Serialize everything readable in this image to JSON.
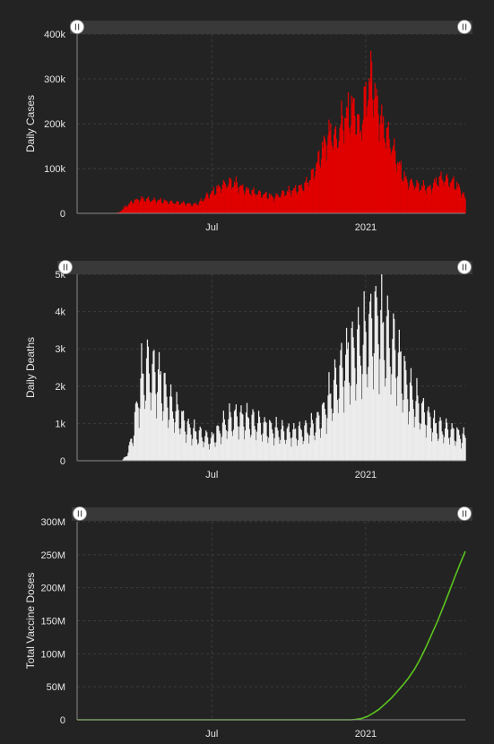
{
  "colors": {
    "background": "#232323",
    "slider_track": "#393939",
    "grid": "#3c3c3c",
    "axis": "#8a8a8a",
    "handle_fill": "#ffffff",
    "handle_mark": "#555555"
  },
  "chart_data": [
    {
      "type": "bar",
      "ylabel": "Daily Cases",
      "ylim": [
        0,
        400000
      ],
      "y_ticks": [
        0,
        100000,
        200000,
        300000,
        400000
      ],
      "y_tick_labels": [
        "0",
        "100k",
        "200k",
        "300k",
        "400k"
      ],
      "x_range": [
        "2020-01-22",
        "2021-04-30"
      ],
      "x_ticks": [
        "2020-07-01",
        "2021-01-01"
      ],
      "x_tick_labels": [
        "Jul",
        "2021"
      ],
      "grid": true,
      "color": "#e00000",
      "series_points": [
        [
          "2020-01-22",
          0
        ],
        [
          "2020-03-01",
          100
        ],
        [
          "2020-03-12",
          2000
        ],
        [
          "2020-03-20",
          15000
        ],
        [
          "2020-03-28",
          26000
        ],
        [
          "2020-04-04",
          30000
        ],
        [
          "2020-04-10",
          32000
        ],
        [
          "2020-04-20",
          29000
        ],
        [
          "2020-05-01",
          28000
        ],
        [
          "2020-05-15",
          24000
        ],
        [
          "2020-05-30",
          22000
        ],
        [
          "2020-06-08",
          19000
        ],
        [
          "2020-06-15",
          22000
        ],
        [
          "2020-06-25",
          38000
        ],
        [
          "2020-07-05",
          50000
        ],
        [
          "2020-07-12",
          60000
        ],
        [
          "2020-07-22",
          68000
        ],
        [
          "2020-07-30",
          65000
        ],
        [
          "2020-08-10",
          52000
        ],
        [
          "2020-08-25",
          44000
        ],
        [
          "2020-09-05",
          40000
        ],
        [
          "2020-09-13",
          35000
        ],
        [
          "2020-09-25",
          45000
        ],
        [
          "2020-10-10",
          53000
        ],
        [
          "2020-10-20",
          62000
        ],
        [
          "2020-10-30",
          88000
        ],
        [
          "2020-11-06",
          120000
        ],
        [
          "2020-11-13",
          155000
        ],
        [
          "2020-11-20",
          180000
        ],
        [
          "2020-11-27",
          160000
        ],
        [
          "2020-12-04",
          205000
        ],
        [
          "2020-12-11",
          220000
        ],
        [
          "2020-12-18",
          235000
        ],
        [
          "2020-12-25",
          180000
        ],
        [
          "2021-01-02",
          270000
        ],
        [
          "2021-01-08",
          300000
        ],
        [
          "2021-01-15",
          235000
        ],
        [
          "2021-01-22",
          190000
        ],
        [
          "2021-01-29",
          165000
        ],
        [
          "2021-02-05",
          130000
        ],
        [
          "2021-02-12",
          95000
        ],
        [
          "2021-02-19",
          70000
        ],
        [
          "2021-02-26",
          66000
        ],
        [
          "2021-03-05",
          60000
        ],
        [
          "2021-03-12",
          58000
        ],
        [
          "2021-03-19",
          55000
        ],
        [
          "2021-03-26",
          70000
        ],
        [
          "2021-04-02",
          78000
        ],
        [
          "2021-04-09",
          72000
        ],
        [
          "2021-04-16",
          68000
        ],
        [
          "2021-04-23",
          55000
        ],
        [
          "2021-04-28",
          40000
        ],
        [
          "2021-04-30",
          30000
        ]
      ]
    },
    {
      "type": "bar",
      "ylabel": "Daily Deaths",
      "ylim": [
        0,
        5000
      ],
      "y_ticks": [
        0,
        1000,
        2000,
        3000,
        4000,
        5000
      ],
      "y_tick_labels": [
        "0",
        "1k",
        "2k",
        "3k",
        "4k",
        "5k"
      ],
      "x_range": [
        "2020-01-22",
        "2021-04-30"
      ],
      "x_ticks": [
        "2020-07-01",
        "2021-01-01"
      ],
      "x_tick_labels": [
        "Jul",
        "2021"
      ],
      "grid": true,
      "color": "#ececec",
      "series_points": [
        [
          "2020-01-22",
          0
        ],
        [
          "2020-03-15",
          0
        ],
        [
          "2020-03-20",
          100
        ],
        [
          "2020-03-28",
          600
        ],
        [
          "2020-04-03",
          1500
        ],
        [
          "2020-04-08",
          2100
        ],
        [
          "2020-04-14",
          2400
        ],
        [
          "2020-04-20",
          2350
        ],
        [
          "2020-04-28",
          2200
        ],
        [
          "2020-05-06",
          1800
        ],
        [
          "2020-05-14",
          1400
        ],
        [
          "2020-05-24",
          1200
        ],
        [
          "2020-06-01",
          900
        ],
        [
          "2020-06-10",
          750
        ],
        [
          "2020-06-20",
          650
        ],
        [
          "2020-06-30",
          550
        ],
        [
          "2020-07-10",
          800
        ],
        [
          "2020-07-20",
          1050
        ],
        [
          "2020-07-30",
          1150
        ],
        [
          "2020-08-10",
          1100
        ],
        [
          "2020-08-22",
          1000
        ],
        [
          "2020-09-02",
          900
        ],
        [
          "2020-09-15",
          800
        ],
        [
          "2020-09-28",
          750
        ],
        [
          "2020-10-10",
          750
        ],
        [
          "2020-10-22",
          800
        ],
        [
          "2020-11-01",
          950
        ],
        [
          "2020-11-10",
          1200
        ],
        [
          "2020-11-18",
          1600
        ],
        [
          "2020-11-26",
          2000
        ],
        [
          "2020-12-04",
          2450
        ],
        [
          "2020-12-12",
          2750
        ],
        [
          "2020-12-20",
          2950
        ],
        [
          "2020-12-28",
          3000
        ],
        [
          "2021-01-05",
          3400
        ],
        [
          "2021-01-12",
          3750
        ],
        [
          "2021-01-20",
          3500
        ],
        [
          "2021-01-28",
          3200
        ],
        [
          "2021-02-05",
          2900
        ],
        [
          "2021-02-12",
          2500
        ],
        [
          "2021-02-20",
          1900
        ],
        [
          "2021-02-28",
          1600
        ],
        [
          "2021-03-08",
          1350
        ],
        [
          "2021-03-16",
          1150
        ],
        [
          "2021-03-24",
          950
        ],
        [
          "2021-04-01",
          850
        ],
        [
          "2021-04-10",
          800
        ],
        [
          "2021-04-20",
          700
        ],
        [
          "2021-04-30",
          600
        ]
      ]
    },
    {
      "type": "line",
      "ylabel": "Total Vaccine Doses",
      "ylim": [
        0,
        300000000
      ],
      "y_ticks": [
        0,
        50000000,
        100000000,
        150000000,
        200000000,
        250000000,
        300000000
      ],
      "y_tick_labels": [
        "0",
        "50M",
        "100M",
        "150M",
        "200M",
        "250M",
        "300M"
      ],
      "x_range": [
        "2020-01-22",
        "2021-04-30"
      ],
      "x_ticks": [
        "2020-07-01",
        "2021-01-01"
      ],
      "x_tick_labels": [
        "Jul",
        "2021"
      ],
      "grid": true,
      "color": "#5cc41e",
      "series_points": [
        [
          "2020-01-22",
          0
        ],
        [
          "2020-12-14",
          0
        ],
        [
          "2020-12-20",
          500000
        ],
        [
          "2020-12-27",
          2000000
        ],
        [
          "2021-01-03",
          5000000
        ],
        [
          "2021-01-10",
          10000000
        ],
        [
          "2021-01-17",
          16000000
        ],
        [
          "2021-01-24",
          24000000
        ],
        [
          "2021-01-31",
          32000000
        ],
        [
          "2021-02-07",
          42000000
        ],
        [
          "2021-02-14",
          52000000
        ],
        [
          "2021-02-21",
          63000000
        ],
        [
          "2021-02-28",
          76000000
        ],
        [
          "2021-03-07",
          92000000
        ],
        [
          "2021-03-14",
          110000000
        ],
        [
          "2021-03-21",
          130000000
        ],
        [
          "2021-03-28",
          150000000
        ],
        [
          "2021-04-04",
          172000000
        ],
        [
          "2021-04-11",
          195000000
        ],
        [
          "2021-04-18",
          218000000
        ],
        [
          "2021-04-25",
          240000000
        ],
        [
          "2021-04-30",
          255000000
        ]
      ]
    }
  ]
}
